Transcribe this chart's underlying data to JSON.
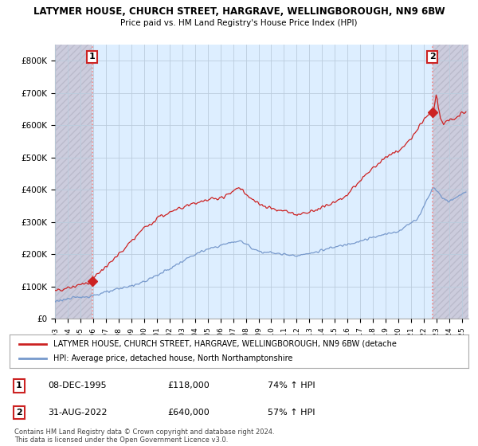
{
  "title": "LATYMER HOUSE, CHURCH STREET, HARGRAVE, WELLINGBOROUGH, NN9 6BW",
  "subtitle": "Price paid vs. HM Land Registry's House Price Index (HPI)",
  "sale1_date": "08-DEC-1995",
  "sale1_price": 118000,
  "sale1_hpi": "74% ↑ HPI",
  "sale2_date": "31-AUG-2022",
  "sale2_price": 640000,
  "sale2_hpi": "57% ↑ HPI",
  "yticks": [
    0,
    100000,
    200000,
    300000,
    400000,
    500000,
    600000,
    700000,
    800000
  ],
  "ytick_labels": [
    "£0",
    "£100K",
    "£200K",
    "£300K",
    "£400K",
    "£500K",
    "£600K",
    "£700K",
    "£800K"
  ],
  "grid_color": "#bbccdd",
  "sale_color": "#cc2222",
  "hpi_color": "#7799cc",
  "vline_color": "#ee8888",
  "hatch_color": "#bbbbcc",
  "plot_bg_color": "#ddeeff",
  "hatch_region_color": "#ccccdd",
  "legend_label_sale": "LATYMER HOUSE, CHURCH STREET, HARGRAVE, WELLINGBOROUGH, NN9 6BW (detache",
  "legend_label_hpi": "HPI: Average price, detached house, North Northamptonshire",
  "footnote": "Contains HM Land Registry data © Crown copyright and database right 2024.\nThis data is licensed under the Open Government Licence v3.0.",
  "background_color": "#ffffff",
  "sale1_year": 1995.92,
  "sale2_year": 2022.67,
  "xmin": 1993.0,
  "xmax": 2025.5,
  "ymin": 0,
  "ymax": 850000
}
